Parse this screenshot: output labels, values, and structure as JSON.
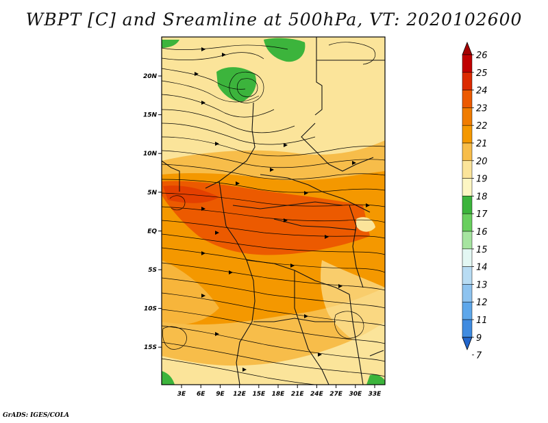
{
  "title": "WBPT [C] and Sreamline at 500hPa, VT: 2020102600",
  "footer": "GrADS: IGES/COLA",
  "map": {
    "lon_ticks": [
      "3E",
      "6E",
      "9E",
      "12E",
      "15E",
      "18E",
      "21E",
      "24E",
      "27E",
      "30E",
      "33E"
    ],
    "lat_ticks": [
      "20N",
      "15N",
      "10N",
      "5N",
      "EQ",
      "5S",
      "10S",
      "15S"
    ]
  },
  "colorbar": {
    "levels": [
      "26",
      "25",
      "24",
      "23",
      "22",
      "21",
      "20",
      "19",
      "18",
      "17",
      "16",
      "15",
      "14",
      "13",
      "12",
      "11",
      "9",
      "7"
    ],
    "colors": [
      "#a50000",
      "#c00000",
      "#dc2a00",
      "#ec5a00",
      "#f07c00",
      "#f49800",
      "#f7bd4a",
      "#fbe49a",
      "#fdf6c3",
      "#3cb43c",
      "#69cf5e",
      "#a6e4a0",
      "#e3f7f3",
      "#b8dcf3",
      "#8ec3ef",
      "#5ea7ea",
      "#3f8be0",
      "#2266cc"
    ]
  }
}
